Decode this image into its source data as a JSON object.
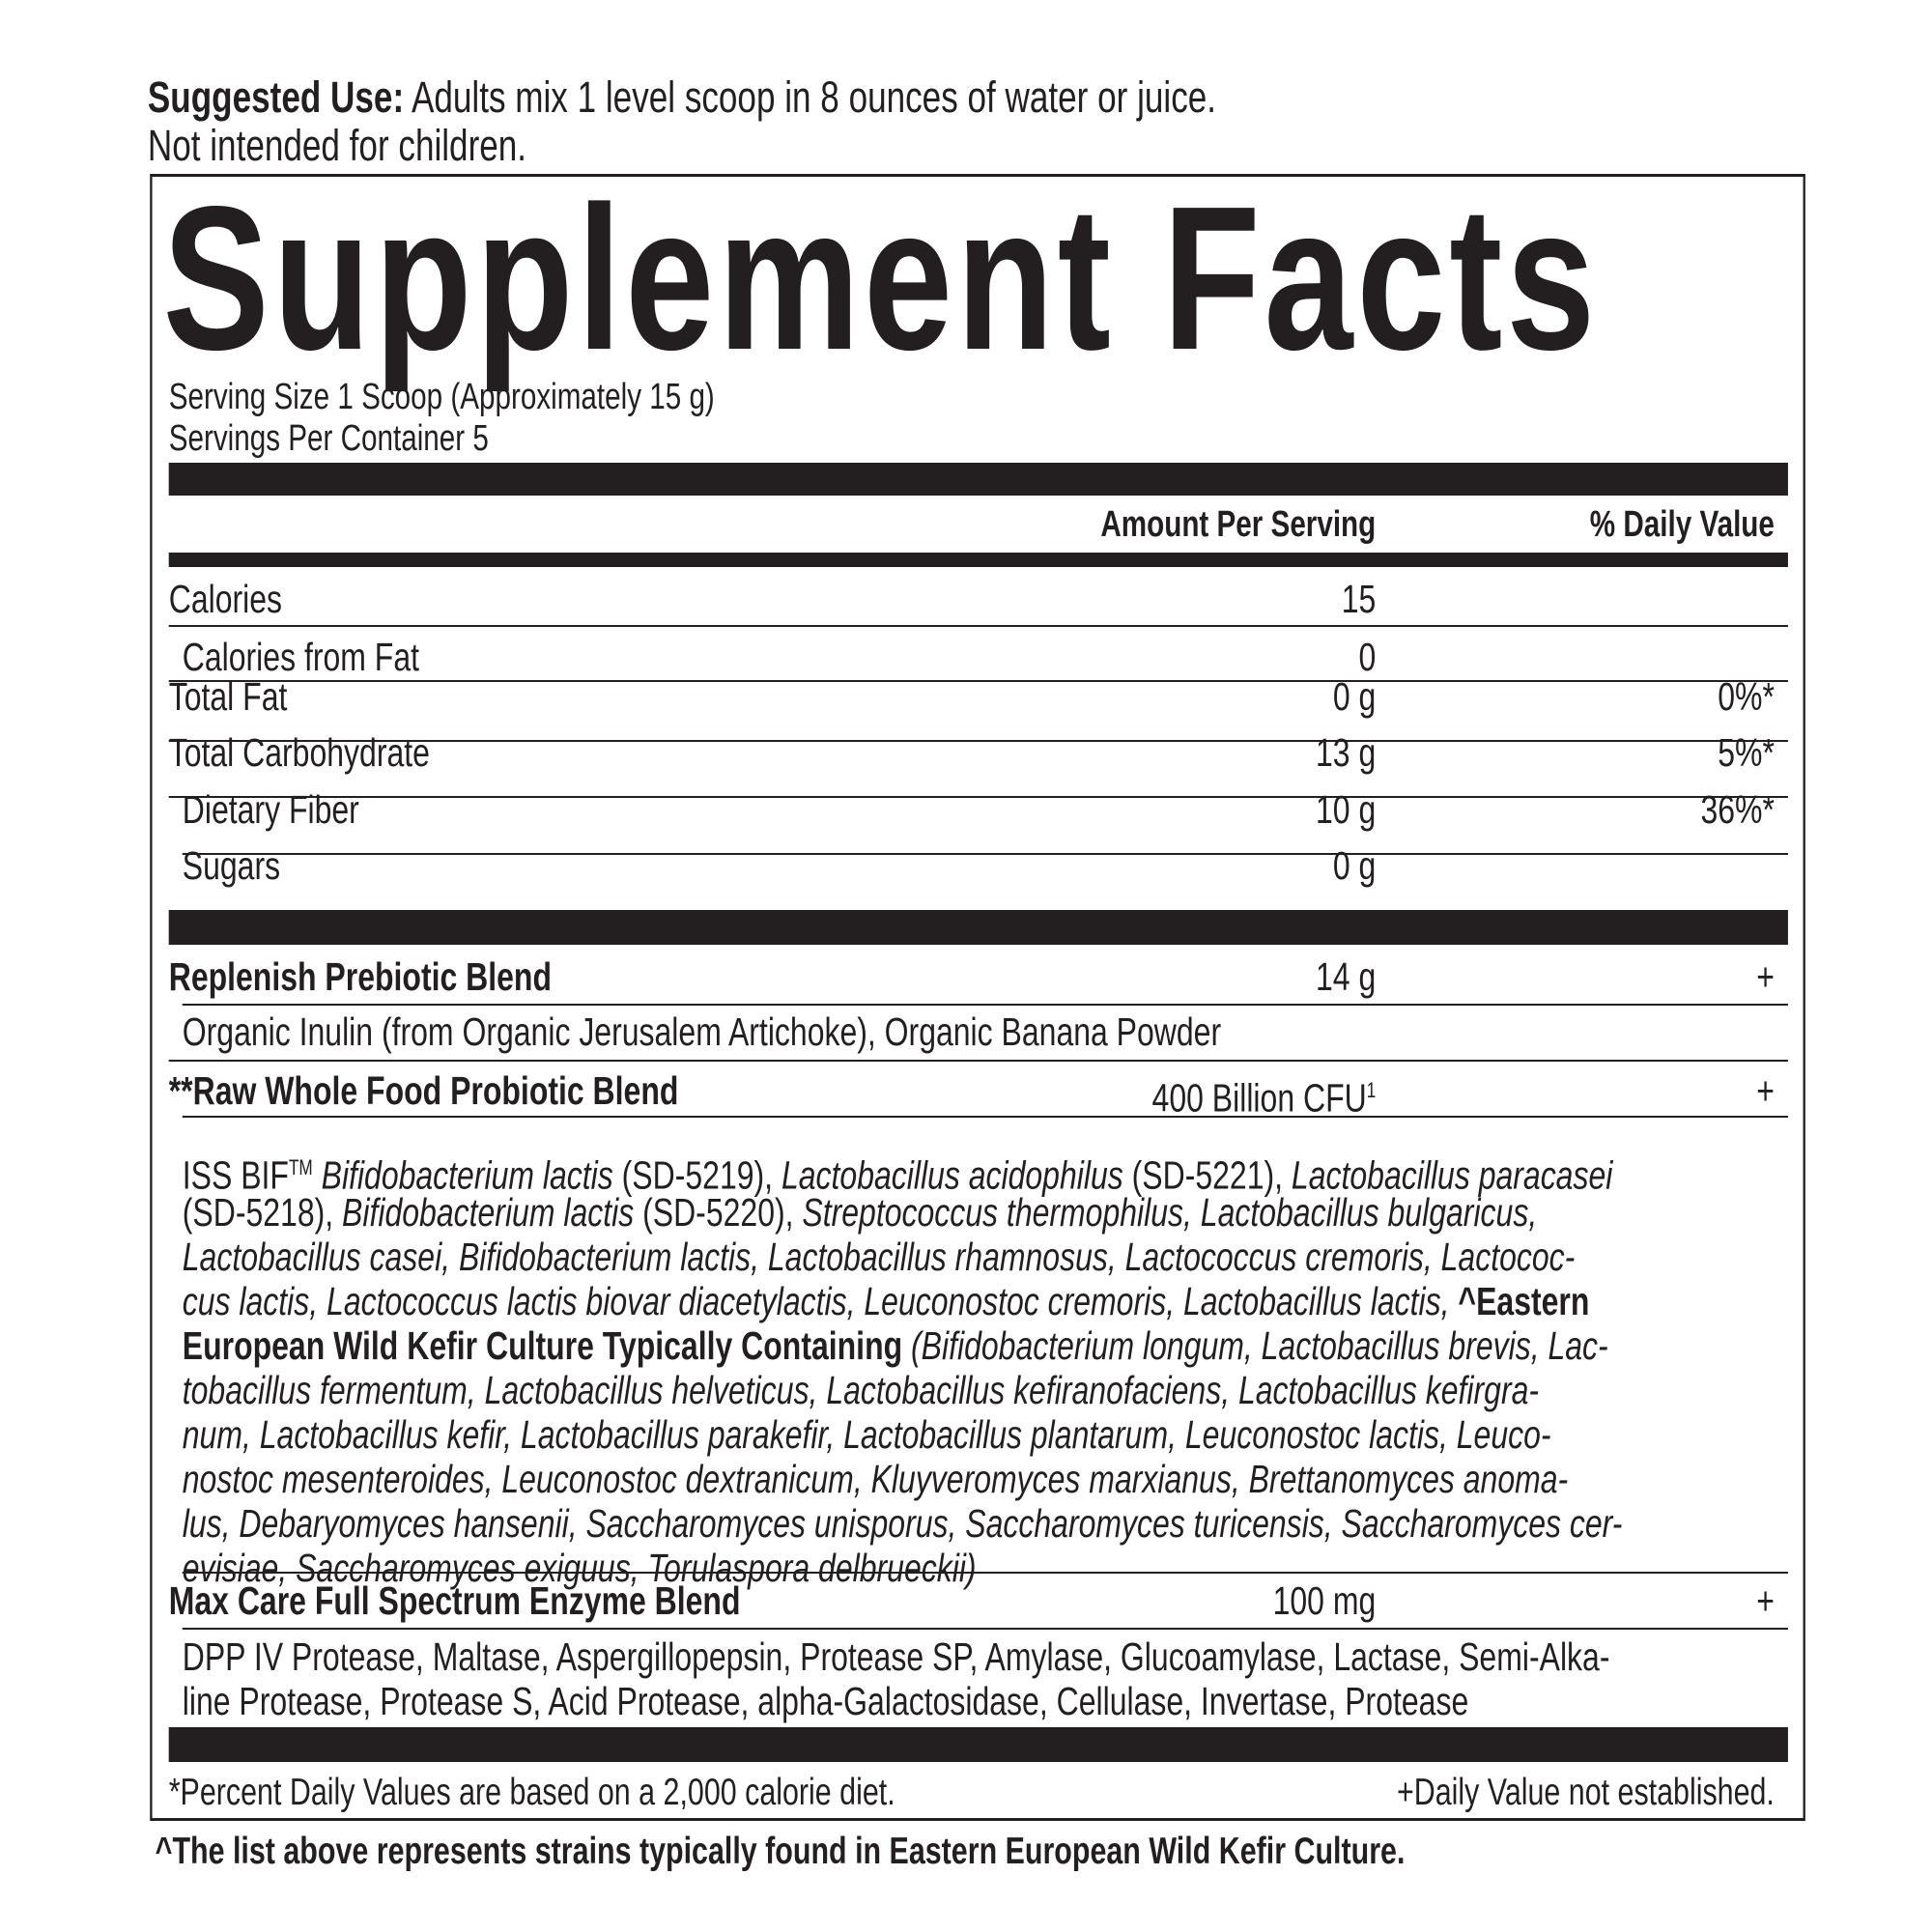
{
  "suggested_use": {
    "label": "Suggested Use:",
    "text": " Adults mix 1 level scoop in 8 ounces of water or juice.",
    "line2": "Not intended for children."
  },
  "title": "Supplement Facts",
  "serving_size": "Serving Size 1 Scoop (Approximately 15 g)",
  "servings_per_container": "Servings Per Container 5",
  "header": {
    "amount": "Amount Per Serving",
    "dv": "% Daily Value"
  },
  "nutrients": [
    {
      "name": "Calories",
      "amount": "15",
      "dv": ""
    },
    {
      "name": "Calories from Fat",
      "amount": "0",
      "dv": ""
    },
    {
      "name": "Total Fat",
      "amount": "0 g",
      "dv": "0%*"
    },
    {
      "name": "Total Carbohydrate",
      "amount": "13 g",
      "dv": "5%*"
    },
    {
      "name": "Dietary Fiber",
      "amount": "10 g",
      "dv": "36%*"
    },
    {
      "name": "Sugars",
      "amount": "0 g",
      "dv": ""
    }
  ],
  "blends": [
    {
      "name": "Replenish Prebiotic Blend",
      "amount": "14 g",
      "dv": "+",
      "ingredients": "Organic Inulin (from Organic Jerusalem Artichoke), Organic Banana Powder"
    },
    {
      "name": "**Raw Whole Food Probiotic Blend",
      "amount": "400 Billion CFU",
      "amount_sup": "1",
      "dv": "+"
    },
    {
      "name": "Max Care Full Spectrum Enzyme Blend",
      "amount": "100 mg",
      "dv": "+",
      "ingredients_lines": [
        "DPP IV Protease, Maltase, Aspergillopepsin, Protease SP, Amylase, Glucoamylase, Lactase, Semi-Alka-",
        "line Protease, Protease S, Acid Protease, alpha-Galactosidase, Cellulase, Invertase, Protease"
      ]
    }
  ],
  "probiotic_lines": [
    [
      [
        "n",
        "ISS BIF"
      ],
      [
        "sup",
        "TM"
      ],
      [
        "i",
        " Bifidobacterium lactis"
      ],
      [
        "n",
        " (SD-5219), "
      ],
      [
        "i",
        "Lactobacillus acidophilus"
      ],
      [
        "n",
        " (SD-5221), "
      ],
      [
        "i",
        "Lactobacillus paracasei"
      ]
    ],
    [
      [
        "n",
        "(SD-5218), "
      ],
      [
        "i",
        "Bifidobacterium lactis"
      ],
      [
        "n",
        " (SD-5220), "
      ],
      [
        "i",
        "Streptococcus thermophilus, Lactobacillus bulgaricus,"
      ]
    ],
    [
      [
        "i",
        "Lactobacillus casei, Bifidobacterium lactis, Lactobacillus rhamnosus, Lactococcus cremoris, Lactococ-"
      ]
    ],
    [
      [
        "i",
        "cus lactis, Lactococcus lactis biovar diacetylactis, Leuconostoc cremoris, Lactobacillus lactis, "
      ],
      [
        "b",
        "^Eastern"
      ]
    ],
    [
      [
        "b",
        "European Wild Kefir Culture Typically Containing "
      ],
      [
        "i",
        "(Bifidobacterium longum, Lactobacillus brevis, Lac-"
      ]
    ],
    [
      [
        "i",
        "tobacillus fermentum, Lactobacillus helveticus, Lactobacillus kefiranofaciens, Lactobacillus kefirgra-"
      ]
    ],
    [
      [
        "i",
        "num, Lactobacillus kefir, Lactobacillus parakefir, Lactobacillus plantarum, Leuconostoc lactis, Leuco-"
      ]
    ],
    [
      [
        "i",
        "nostoc mesenteroides, Leuconostoc dextranicum, Kluyveromyces marxianus, Brettanomyces anoma-"
      ]
    ],
    [
      [
        "i",
        "lus, Debaryomyces hansenii, Saccharomyces unisporus, Saccharomyces turicensis, Saccharomyces cer-"
      ]
    ],
    [
      [
        "i",
        "evisiae, Saccharomyces exiguus, Torulaspora delbrueckii)"
      ]
    ]
  ],
  "footnotes": {
    "dv": "*Percent Daily Values are based on a 2,000 calorie diet.",
    "ne": "+Daily Value not established.",
    "kefir": "^The list above represents strains typically found in Eastern European Wild Kefir Culture."
  }
}
